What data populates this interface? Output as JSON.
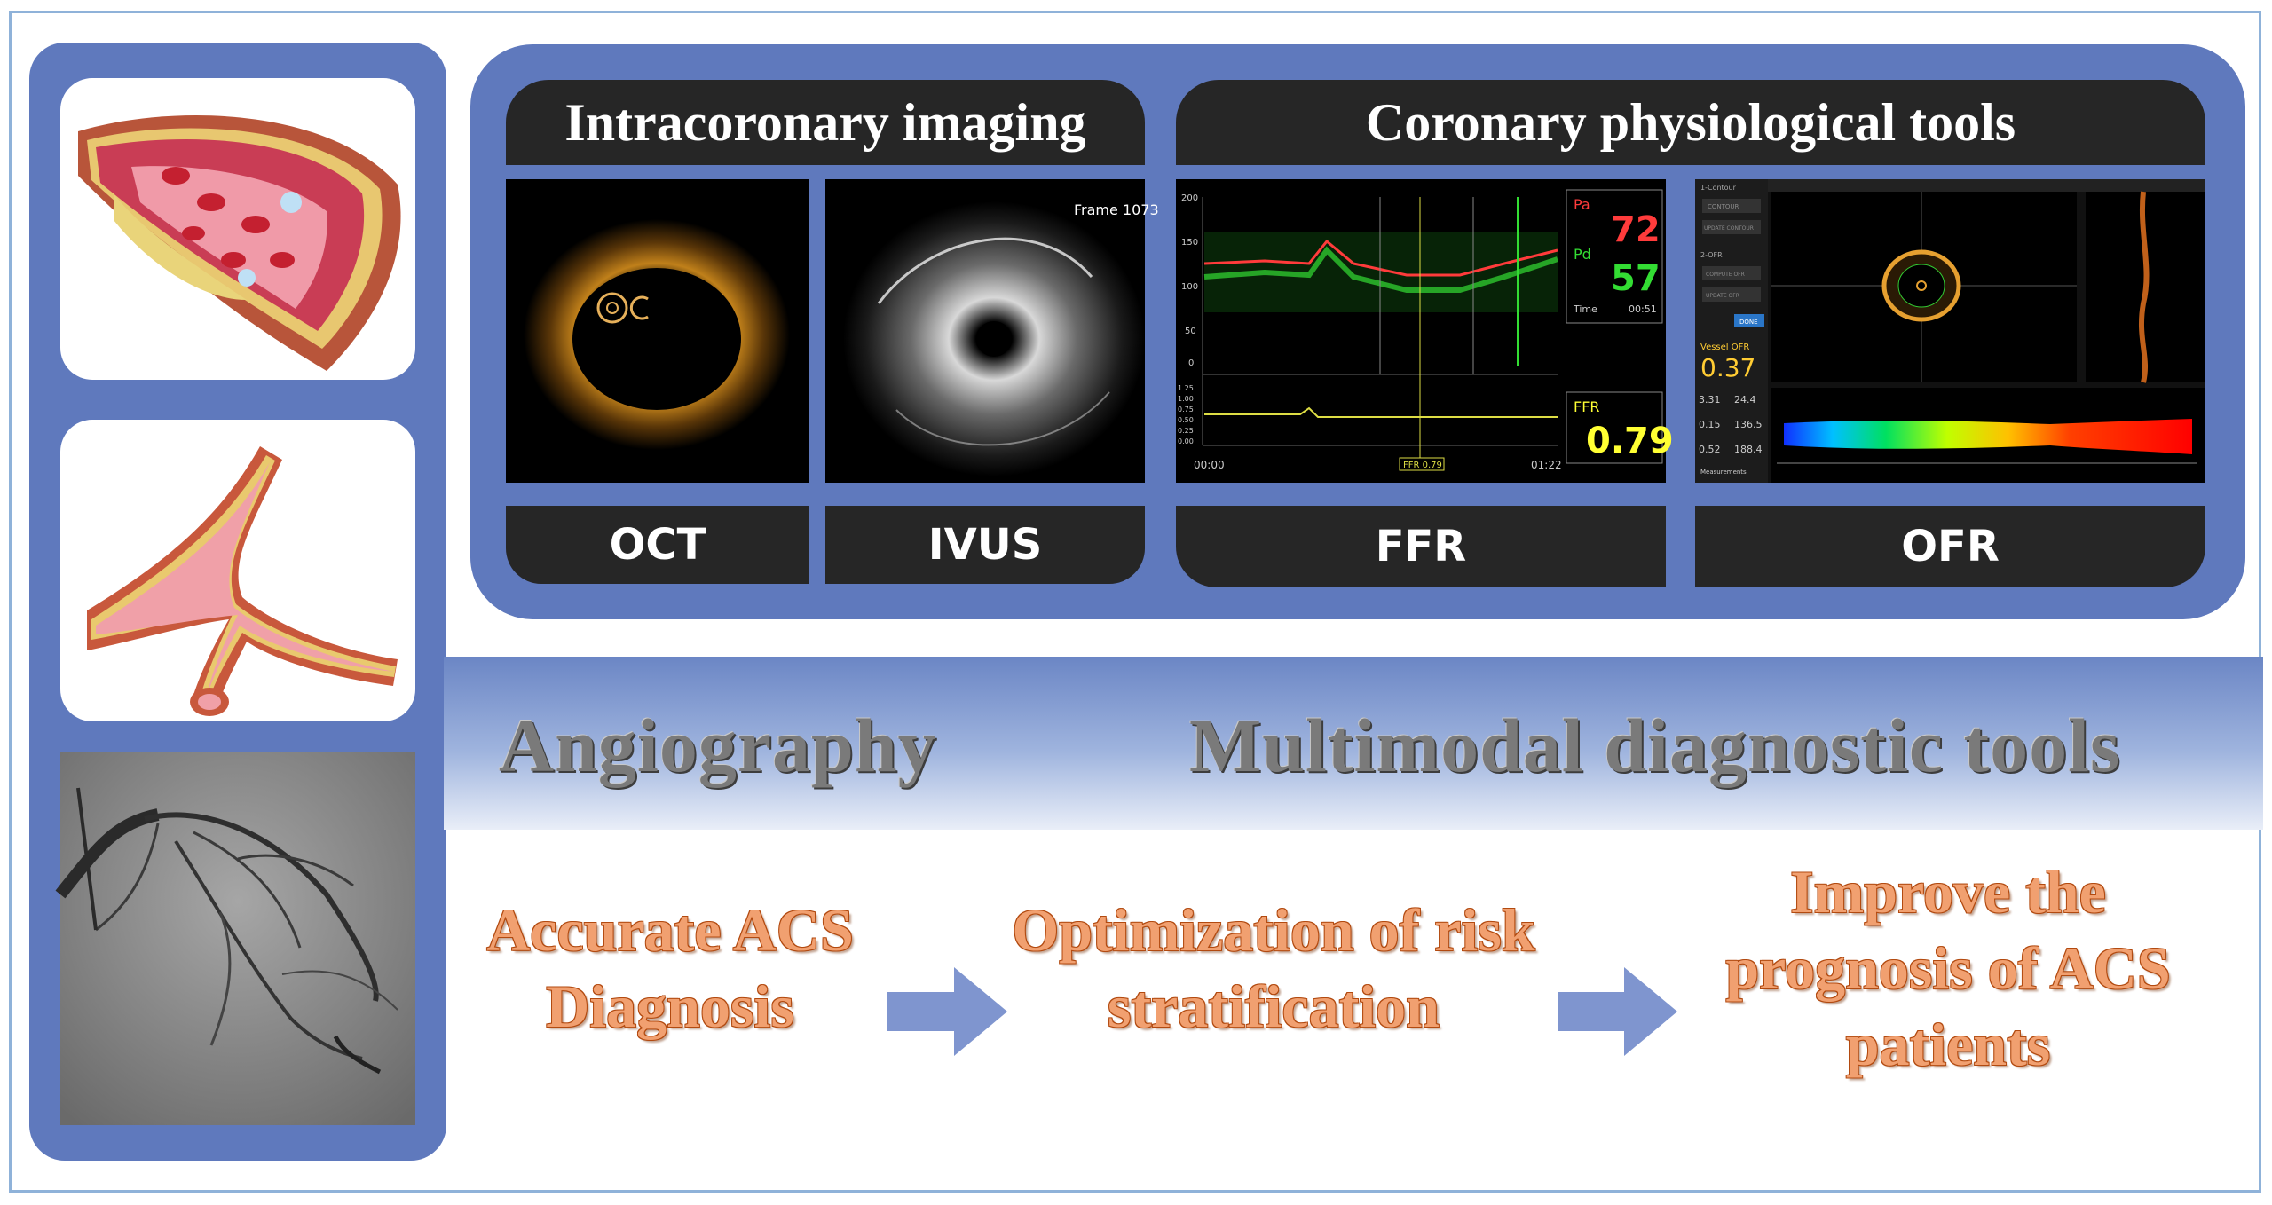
{
  "top": {
    "imaging_header": "Intracoronary imaging",
    "physiology_header": "Coronary physiological tools",
    "labels": {
      "oct": "OCT",
      "ivus": "IVUS",
      "ffr": "FFR",
      "ofr": "OFR"
    },
    "ivus_frame": "Frame 1073",
    "ffr_panel": {
      "pa_label": "Pa",
      "pa_value": "72",
      "pd_label": "Pd",
      "pd_value": "57",
      "time_label": "Time",
      "time_value": "00:51",
      "ffr_label": "FFR",
      "ffr_value": "0.79",
      "t_start": "00:00",
      "t_end": "01:22",
      "marker": "FFR 0.79",
      "y_ticks": [
        "200",
        "150",
        "100",
        "50",
        "0"
      ],
      "y_ticks_small": [
        "1.25",
        "1.00",
        "0.75",
        "0.50",
        "0.25",
        "0.00"
      ]
    },
    "ofr_panel": {
      "vessel_label": "Vessel OFR",
      "vessel_value": "0.37",
      "stats": [
        "3.31",
        "24.4",
        "0.15",
        "136.5",
        "0.52",
        "188.4"
      ],
      "tabs": [
        "1-Contour",
        "2-OFR"
      ],
      "buttons": [
        "CONTOUR",
        "UPDATE CONTOUR",
        "COMPUTE OFR",
        "UPDATE OFR"
      ],
      "done_label": "DONE",
      "measurements_label": "Measurements"
    }
  },
  "band": {
    "left": "Angiography",
    "right": "Multimodal diagnostic tools"
  },
  "flow": {
    "step1": [
      "Accurate ACS",
      "Diagnosis"
    ],
    "step2": [
      "Optimization of risk",
      "stratification"
    ],
    "step3": [
      "Improve the",
      "prognosis of ACS",
      "patients"
    ]
  },
  "colors": {
    "panel_blue": "#5f79bd",
    "header_dark": "#262626",
    "flow_orange": "#f1a070",
    "arrow_blue": "#7f95cf",
    "pa_red": "#ff3b3b",
    "pd_green": "#33dd33",
    "ffr_yellow": "#ffff33"
  }
}
